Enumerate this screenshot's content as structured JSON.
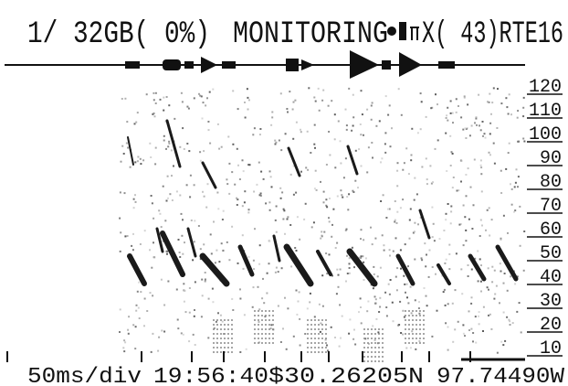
{
  "header": {
    "storage": "1/ 32GB( 0%)",
    "mode": "MONITORING",
    "status": "X( 43)RTE16"
  },
  "axis": {
    "labels": [
      "120",
      "110",
      "100",
      "90",
      "80",
      "70",
      "60",
      "50",
      "40",
      "30",
      "20",
      "10"
    ]
  },
  "footer": {
    "timebase": "50ms/div",
    "time": "19:56:40",
    "latitude": "$30.26205N",
    "longitude": "97.74490W"
  }
}
